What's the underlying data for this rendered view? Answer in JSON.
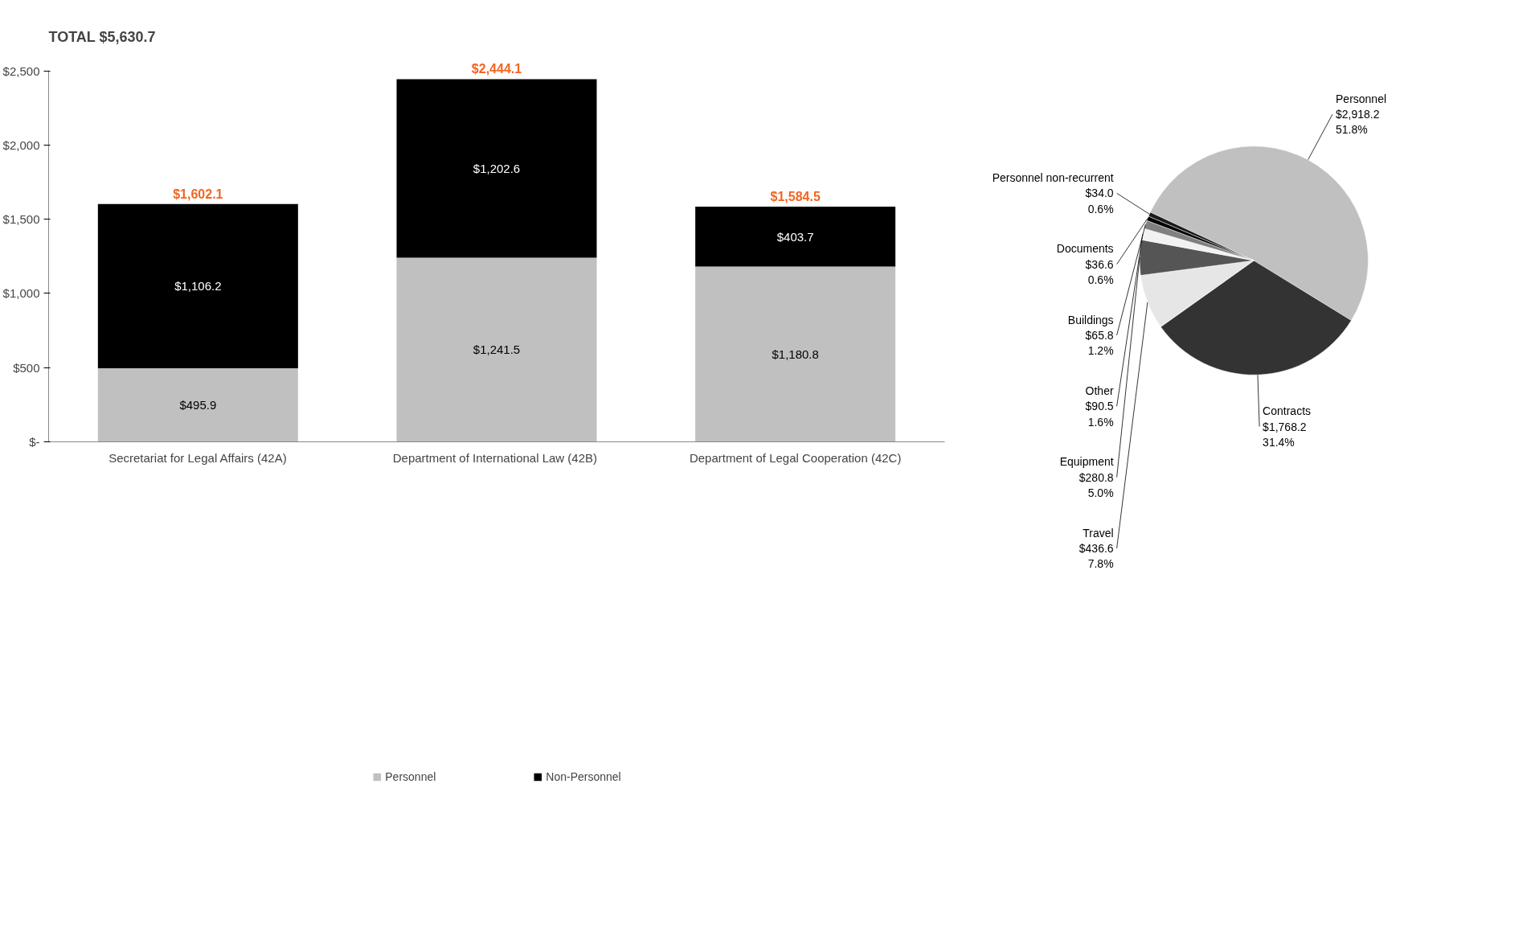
{
  "chart_data": [
    {
      "type": "bar",
      "title": "TOTAL  $5,630.7",
      "stacked": true,
      "categories": [
        "Secretariat for Legal Affairs (42A)",
        "Department of International Law  (42B)",
        "Department of Legal Cooperation (42C)"
      ],
      "series": [
        {
          "name": "Personnel",
          "color": "#c0c0c0",
          "values": [
            495.9,
            1241.5,
            1180.8
          ],
          "value_labels": [
            "$495.9",
            "$1,241.5",
            "$1,180.8"
          ]
        },
        {
          "name": "Non-Personnel",
          "color": "#000000",
          "values": [
            1106.2,
            1202.6,
            403.7
          ],
          "value_labels": [
            "$1,106.2",
            "$1,202.6",
            "$403.7"
          ]
        }
      ],
      "totals": [
        "$1,602.1",
        "$2,444.1",
        "$1,584.5"
      ],
      "ylim": [
        0,
        2500
      ],
      "yticks": [
        {
          "value": 0,
          "label": "$-"
        },
        {
          "value": 500,
          "label": "$500"
        },
        {
          "value": 1000,
          "label": "$1,000"
        },
        {
          "value": 1500,
          "label": "$1,500"
        },
        {
          "value": 2000,
          "label": "$2,000"
        },
        {
          "value": 2500,
          "label": "$2,500"
        }
      ],
      "grid": false,
      "legend": "bottom"
    },
    {
      "type": "pie",
      "categories": [
        "Personnel",
        "Contracts",
        "Travel",
        "Equipment",
        "Other",
        "Buildings",
        "Documents",
        "Personnel non-recurrent"
      ],
      "values": [
        2918.2,
        1768.2,
        436.6,
        280.8,
        90.5,
        65.8,
        36.6,
        34.0
      ],
      "value_labels": [
        "$2,918.2\n51.8%",
        "$1,768.2\n31.4%",
        "$436.6\n7.8%",
        "$280.8\n5.0%",
        "$90.5\n1.6%",
        "$65.8\n1.2%",
        "$36.6\n0.6%",
        "$34.0\n0.6%"
      ],
      "colors": [
        "#c0c0c0",
        "#333333",
        "#e6e6e6",
        "#555555",
        "#f2f2f2",
        "#808080",
        "#000000",
        "#1a1a1a"
      ]
    }
  ]
}
